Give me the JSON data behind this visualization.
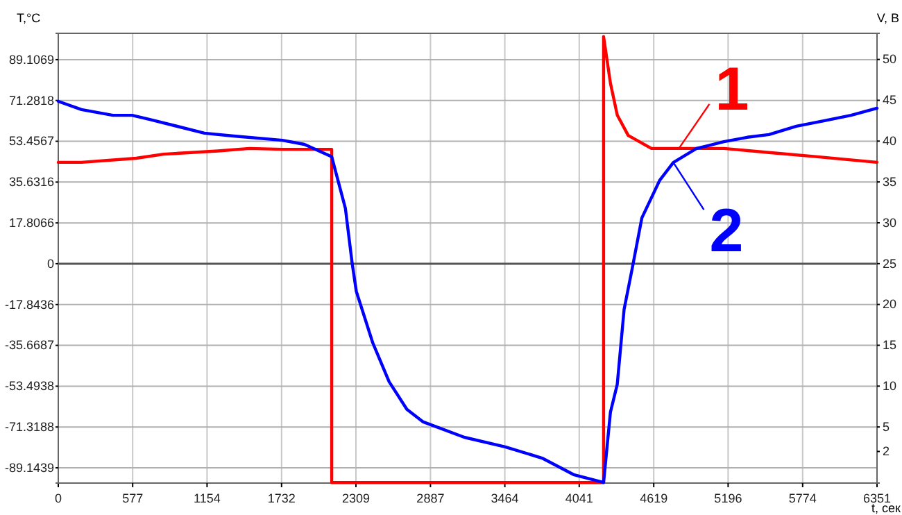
{
  "chart_data": {
    "type": "line",
    "xlabel": "t, сек",
    "ylabel": "T,°C",
    "y2label": "V, B",
    "x": [
      0,
      180,
      424,
      573,
      710,
      1134,
      1346,
      1739,
      1909,
      2121,
      2227,
      2280,
      2312,
      2439,
      2566,
      2704,
      2831,
      3149,
      3467,
      3753,
      3997,
      4230,
      4283,
      4336,
      4389,
      4453,
      4527,
      4665,
      4771,
      4951,
      5163,
      5344,
      5513,
      5725,
      5937,
      6149,
      6351
    ],
    "series": [
      {
        "name": "1",
        "color": "#ff0000",
        "axis": "y2",
        "x": [
          0,
          180,
          604,
          816,
          1240,
          1484,
          1739,
          2121,
          2121,
          4230,
          4230,
          4283,
          4336,
          4421,
          4601,
          4814,
          5163,
          5513,
          5874,
          6351
        ],
        "values": [
          37.4,
          37.4,
          37.9,
          38.4,
          38.8,
          39.1,
          39.0,
          39.0,
          -1.8,
          -1.8,
          52.8,
          47.1,
          43.2,
          40.7,
          39.1,
          39.1,
          39.1,
          38.6,
          38.1,
          37.4
        ]
      },
      {
        "name": "2",
        "color": "#0000ff",
        "values": [
          70.9,
          67.3,
          64.8,
          64.8,
          63.0,
          57.0,
          55.8,
          53.9,
          52.1,
          46.7,
          24.2,
          0,
          -12.1,
          -34.5,
          -51.5,
          -63.6,
          -69.1,
          -75.8,
          -80.0,
          -84.9,
          -92.1,
          -95.5,
          -64.9,
          -52.7,
          -20.0,
          -1.8,
          20.0,
          36.4,
          44.2,
          50.3,
          53.3,
          55.2,
          56.4,
          60.0,
          62.4,
          64.8,
          67.9
        ]
      }
    ],
    "xlim": [
      0,
      6351
    ],
    "xticks": [
      0,
      577,
      1154,
      1732,
      2309,
      2887,
      3464,
      4041,
      4619,
      5196,
      5774,
      6351
    ],
    "ylim": [
      -95.8,
      100.6
    ],
    "yticks": [
      -89.1439,
      -71.3188,
      -53.4938,
      -35.6687,
      -17.8436,
      0,
      17.8066,
      35.6316,
      53.4567,
      71.2818,
      89.1069
    ],
    "y2lim": [
      -1.87,
      53.2
    ],
    "y2ticks": [
      2,
      5,
      10,
      15,
      20,
      25,
      30,
      35,
      40,
      45,
      50
    ],
    "grid": true,
    "legend": "top right",
    "marker": "none",
    "line_style": "solid"
  }
}
